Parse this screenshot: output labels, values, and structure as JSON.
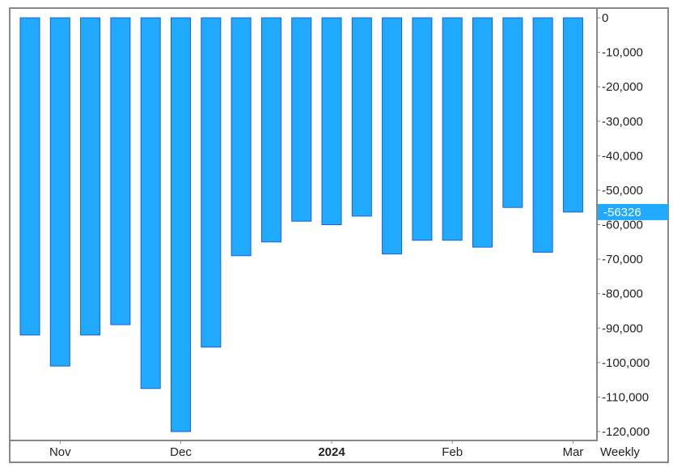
{
  "chart_data": {
    "type": "bar",
    "title": "",
    "xlabel": "",
    "ylabel": "",
    "ylim": [
      -122000,
      1000
    ],
    "y_ticks": [
      0,
      -10000,
      -20000,
      -30000,
      -40000,
      -50000,
      -60000,
      -70000,
      -80000,
      -90000,
      -100000,
      -110000,
      -120000
    ],
    "y_tick_labels": [
      "0",
      "-10,000",
      "-20,000",
      "-30,000",
      "-40,000",
      "-50,000",
      "-60,000",
      "-70,000",
      "-80,000",
      "-90,000",
      "-100,000",
      "-110,000",
      "-120,000"
    ],
    "x_tick_labels": [
      {
        "text": "Nov",
        "at_bar": 1,
        "bold": false
      },
      {
        "text": "Dec",
        "at_bar": 5,
        "bold": false
      },
      {
        "text": "2024",
        "at_bar": 10,
        "bold": true
      },
      {
        "text": "Feb",
        "at_bar": 14,
        "bold": false
      },
      {
        "text": "Mar",
        "at_bar": 18,
        "bold": false
      }
    ],
    "frequency_label": "Weekly",
    "last_value_label": "-56326",
    "last_value": -56326,
    "values": [
      -92000,
      -101000,
      -92000,
      -89000,
      -107500,
      -120000,
      -95500,
      -69000,
      -65000,
      -59000,
      -60000,
      -57500,
      -68500,
      -64500,
      -64500,
      -66500,
      -55000,
      -68000,
      -56326
    ],
    "grid": false,
    "legend": "none",
    "colors": {
      "bar_fill": "#1faaff",
      "bar_stroke": "#1a5fd6",
      "frame": "#888888",
      "label_box": "#1faaff"
    }
  }
}
